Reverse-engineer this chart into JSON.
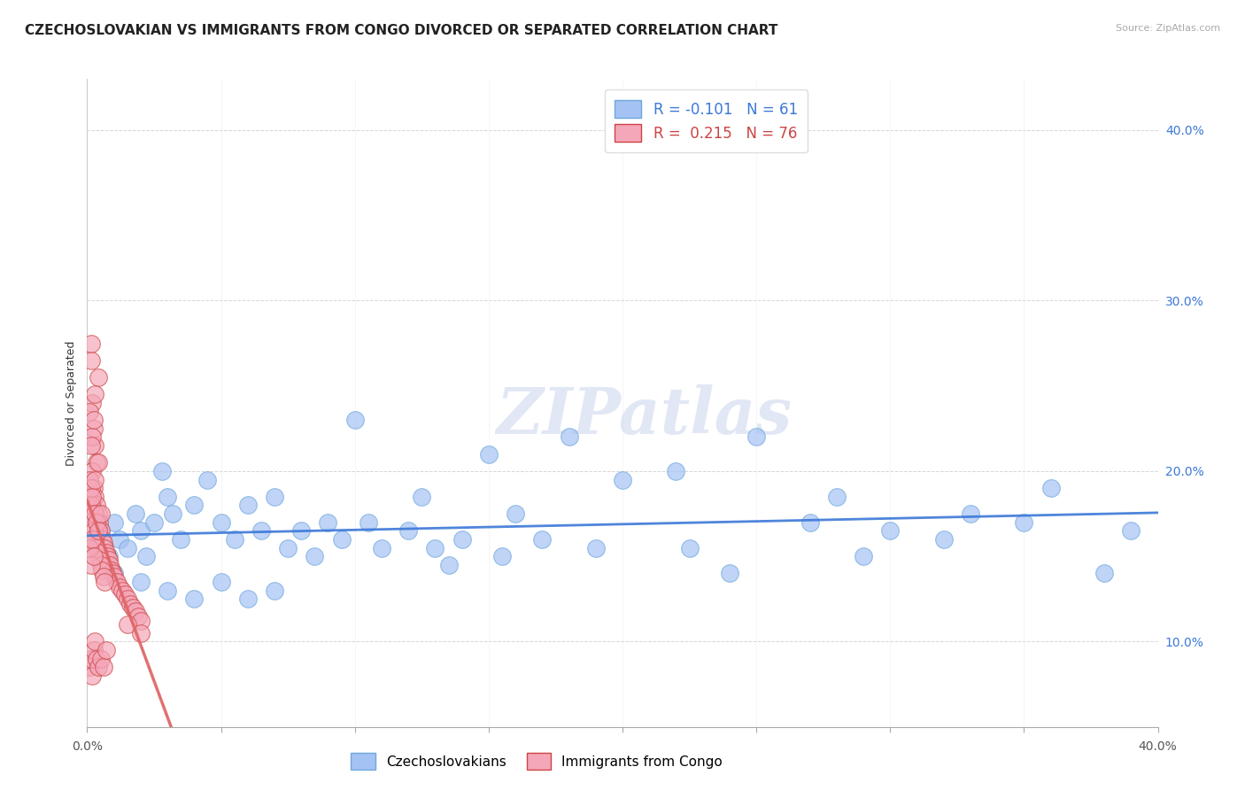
{
  "title": "CZECHOSLOVAKIAN VS IMMIGRANTS FROM CONGO DIVORCED OR SEPARATED CORRELATION CHART",
  "source": "Source: ZipAtlas.com",
  "ylabel": "Divorced or Separated",
  "xlim": [
    0.0,
    40.0
  ],
  "ylim": [
    5.0,
    42.0
  ],
  "yticks_right": [
    10.0,
    20.0,
    30.0,
    40.0
  ],
  "xticks": [
    0.0,
    5.0,
    10.0,
    15.0,
    20.0,
    25.0,
    30.0,
    35.0,
    40.0
  ],
  "legend_r1": "R = -0.101",
  "legend_n1": "N = 61",
  "legend_r2": "R =  0.215",
  "legend_n2": "N = 76",
  "blue_color": "#a4c2f4",
  "pink_color": "#f4a7b9",
  "blue_line_color": "#3c78d8",
  "pink_line_color": "#e06666",
  "background_color": "#ffffff",
  "watermark": "ZIPatlas",
  "blue_scatter": [
    [
      0.5,
      16.5
    ],
    [
      0.8,
      15.0
    ],
    [
      1.0,
      17.0
    ],
    [
      1.2,
      16.0
    ],
    [
      1.5,
      15.5
    ],
    [
      1.8,
      17.5
    ],
    [
      2.0,
      16.5
    ],
    [
      2.2,
      15.0
    ],
    [
      2.5,
      17.0
    ],
    [
      2.8,
      20.0
    ],
    [
      3.0,
      18.5
    ],
    [
      3.2,
      17.5
    ],
    [
      3.5,
      16.0
    ],
    [
      4.0,
      18.0
    ],
    [
      4.5,
      19.5
    ],
    [
      5.0,
      17.0
    ],
    [
      5.5,
      16.0
    ],
    [
      6.0,
      18.0
    ],
    [
      6.5,
      16.5
    ],
    [
      7.0,
      18.5
    ],
    [
      7.5,
      15.5
    ],
    [
      8.0,
      16.5
    ],
    [
      8.5,
      15.0
    ],
    [
      9.0,
      17.0
    ],
    [
      9.5,
      16.0
    ],
    [
      10.0,
      23.0
    ],
    [
      10.5,
      17.0
    ],
    [
      11.0,
      15.5
    ],
    [
      12.0,
      16.5
    ],
    [
      12.5,
      18.5
    ],
    [
      13.0,
      15.5
    ],
    [
      13.5,
      14.5
    ],
    [
      14.0,
      16.0
    ],
    [
      15.0,
      21.0
    ],
    [
      15.5,
      15.0
    ],
    [
      16.0,
      17.5
    ],
    [
      17.0,
      16.0
    ],
    [
      18.0,
      22.0
    ],
    [
      19.0,
      15.5
    ],
    [
      20.0,
      19.5
    ],
    [
      22.0,
      20.0
    ],
    [
      22.5,
      15.5
    ],
    [
      24.0,
      14.0
    ],
    [
      25.0,
      22.0
    ],
    [
      27.0,
      17.0
    ],
    [
      28.0,
      18.5
    ],
    [
      29.0,
      15.0
    ],
    [
      30.0,
      16.5
    ],
    [
      32.0,
      16.0
    ],
    [
      33.0,
      17.5
    ],
    [
      35.0,
      17.0
    ],
    [
      36.0,
      19.0
    ],
    [
      38.0,
      14.0
    ],
    [
      39.0,
      16.5
    ],
    [
      1.0,
      14.0
    ],
    [
      2.0,
      13.5
    ],
    [
      3.0,
      13.0
    ],
    [
      4.0,
      12.5
    ],
    [
      5.0,
      13.5
    ],
    [
      6.0,
      12.5
    ],
    [
      7.0,
      13.0
    ]
  ],
  "pink_scatter": [
    [
      0.15,
      26.5
    ],
    [
      0.2,
      24.0
    ],
    [
      0.25,
      22.5
    ],
    [
      0.3,
      21.5
    ],
    [
      0.35,
      20.5
    ],
    [
      0.1,
      23.5
    ],
    [
      0.4,
      25.5
    ],
    [
      0.15,
      27.5
    ],
    [
      0.2,
      22.0
    ],
    [
      0.25,
      23.0
    ],
    [
      0.3,
      24.5
    ],
    [
      0.15,
      21.5
    ],
    [
      0.2,
      20.0
    ],
    [
      0.25,
      19.0
    ],
    [
      0.3,
      18.5
    ],
    [
      0.35,
      18.0
    ],
    [
      0.4,
      17.5
    ],
    [
      0.45,
      17.0
    ],
    [
      0.5,
      16.5
    ],
    [
      0.55,
      16.0
    ],
    [
      0.6,
      15.8
    ],
    [
      0.65,
      15.5
    ],
    [
      0.7,
      15.2
    ],
    [
      0.75,
      15.0
    ],
    [
      0.8,
      14.8
    ],
    [
      0.85,
      14.5
    ],
    [
      0.9,
      14.2
    ],
    [
      0.95,
      14.0
    ],
    [
      1.0,
      13.8
    ],
    [
      1.1,
      13.5
    ],
    [
      1.2,
      13.2
    ],
    [
      1.3,
      13.0
    ],
    [
      1.4,
      12.8
    ],
    [
      1.5,
      12.5
    ],
    [
      1.6,
      12.2
    ],
    [
      1.7,
      12.0
    ],
    [
      1.8,
      11.8
    ],
    [
      1.9,
      11.5
    ],
    [
      2.0,
      11.2
    ],
    [
      0.1,
      17.5
    ],
    [
      0.15,
      18.0
    ],
    [
      0.2,
      17.0
    ],
    [
      0.25,
      16.5
    ],
    [
      0.3,
      16.0
    ],
    [
      0.35,
      15.5
    ],
    [
      0.4,
      15.2
    ],
    [
      0.45,
      14.8
    ],
    [
      0.5,
      14.5
    ],
    [
      0.55,
      14.2
    ],
    [
      0.6,
      13.8
    ],
    [
      0.65,
      13.5
    ],
    [
      0.1,
      19.5
    ],
    [
      0.15,
      19.0
    ],
    [
      0.2,
      18.5
    ],
    [
      0.3,
      17.5
    ],
    [
      0.35,
      17.0
    ],
    [
      0.1,
      8.5
    ],
    [
      0.2,
      8.0
    ],
    [
      0.15,
      9.0
    ],
    [
      0.25,
      9.5
    ],
    [
      0.3,
      10.0
    ],
    [
      0.35,
      9.0
    ],
    [
      0.4,
      8.5
    ],
    [
      0.5,
      9.0
    ],
    [
      0.6,
      8.5
    ],
    [
      0.7,
      9.5
    ],
    [
      1.5,
      11.0
    ],
    [
      2.0,
      10.5
    ],
    [
      0.1,
      15.5
    ],
    [
      0.2,
      16.0
    ],
    [
      0.15,
      14.5
    ],
    [
      0.25,
      15.0
    ],
    [
      0.4,
      16.5
    ],
    [
      0.5,
      17.5
    ],
    [
      0.3,
      19.5
    ],
    [
      0.4,
      20.5
    ]
  ],
  "title_fontsize": 11,
  "source_fontsize": 8
}
